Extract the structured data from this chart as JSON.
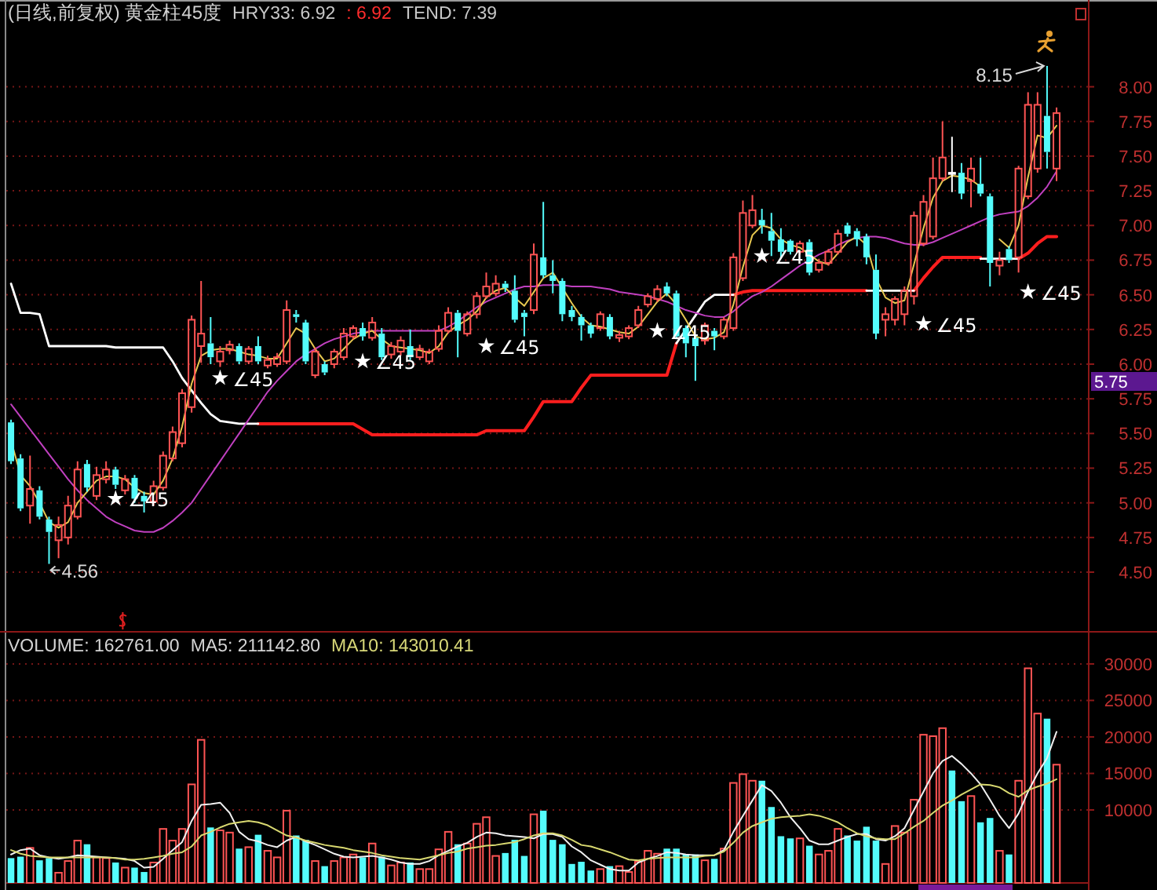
{
  "chart_data": [
    {
      "type": "candlestick",
      "title": "(日线,前复权) 黄金柱45度",
      "categories": [
        null,
        null,
        null,
        null,
        null,
        null,
        null,
        null,
        null,
        null,
        null,
        null,
        null,
        null,
        null,
        null,
        null,
        null,
        null,
        null,
        null,
        null,
        null,
        null,
        null,
        null,
        null,
        null,
        null,
        null,
        null,
        null,
        null,
        null,
        null,
        null,
        null,
        null,
        null,
        null,
        null,
        null,
        null,
        null,
        null,
        null,
        null,
        null,
        null,
        null,
        null,
        null,
        null,
        null,
        null,
        null,
        null,
        null,
        null,
        null,
        null,
        null,
        null,
        null,
        null,
        null,
        null,
        null,
        null,
        null,
        null,
        null,
        null,
        null,
        null,
        null,
        null,
        null,
        null,
        null,
        null,
        null,
        null,
        null,
        null,
        null,
        null,
        null,
        null,
        null,
        null,
        null,
        null,
        null,
        null,
        null,
        null,
        null,
        null,
        null,
        null,
        null,
        null,
        null,
        null,
        null,
        null,
        null,
        null,
        null,
        null
      ],
      "ohlc": [
        [
          5.58,
          5.6,
          5.28,
          5.3
        ],
        [
          5.32,
          5.35,
          4.94,
          4.96
        ],
        [
          4.98,
          5.34,
          4.85,
          5.1
        ],
        [
          5.09,
          5.12,
          4.88,
          4.9
        ],
        [
          4.88,
          4.9,
          4.56,
          4.79
        ],
        [
          4.73,
          4.9,
          4.6,
          4.84
        ],
        [
          4.75,
          5.05,
          4.7,
          4.98
        ],
        [
          4.9,
          5.3,
          4.88,
          5.24
        ],
        [
          5.28,
          5.31,
          5.08,
          5.11
        ],
        [
          5.05,
          5.26,
          5.02,
          5.2
        ],
        [
          5.17,
          5.3,
          5.14,
          5.24
        ],
        [
          5.24,
          5.26,
          5.1,
          5.13
        ],
        [
          5.09,
          5.2,
          5.06,
          5.17
        ],
        [
          5.18,
          5.2,
          5.0,
          5.03
        ],
        [
          5.05,
          5.08,
          4.93,
          5.01
        ],
        [
          5.01,
          5.16,
          4.98,
          5.12
        ],
        [
          5.11,
          5.37,
          5.09,
          5.34
        ],
        [
          5.32,
          5.55,
          5.3,
          5.51
        ],
        [
          5.43,
          5.82,
          5.4,
          5.79
        ],
        [
          5.69,
          6.35,
          5.65,
          6.32
        ],
        [
          6.13,
          6.6,
          6.01,
          6.22
        ],
        [
          6.15,
          6.34,
          6.0,
          6.05
        ],
        [
          6.02,
          6.13,
          5.98,
          6.09
        ],
        [
          6.1,
          6.17,
          6.07,
          6.14
        ],
        [
          6.13,
          6.15,
          6.0,
          6.02
        ],
        [
          6.02,
          6.13,
          6.0,
          6.11
        ],
        [
          6.13,
          6.2,
          6.0,
          6.02
        ],
        [
          5.99,
          6.06,
          5.97,
          6.03
        ],
        [
          6.0,
          6.08,
          5.98,
          6.05
        ],
        [
          6.02,
          6.46,
          6.0,
          6.39
        ],
        [
          6.36,
          6.39,
          6.3,
          6.34
        ],
        [
          6.3,
          6.32,
          6.0,
          6.02
        ],
        [
          5.92,
          6.12,
          5.9,
          6.09
        ],
        [
          6.0,
          6.02,
          5.92,
          5.94
        ],
        [
          6.0,
          6.11,
          5.97,
          6.09
        ],
        [
          6.05,
          6.26,
          6.03,
          6.22
        ],
        [
          6.2,
          6.28,
          6.18,
          6.26
        ],
        [
          6.26,
          6.3,
          6.17,
          6.2
        ],
        [
          6.19,
          6.34,
          6.17,
          6.3
        ],
        [
          6.22,
          6.26,
          6.03,
          6.05
        ],
        [
          6.07,
          6.16,
          6.04,
          6.13
        ],
        [
          6.09,
          6.2,
          6.06,
          6.17
        ],
        [
          6.13,
          6.25,
          6.03,
          6.05
        ],
        [
          6.05,
          6.14,
          6.03,
          6.11
        ],
        [
          6.02,
          6.11,
          6.0,
          6.09
        ],
        [
          6.11,
          6.28,
          6.09,
          6.24
        ],
        [
          6.24,
          6.41,
          6.22,
          6.37
        ],
        [
          6.37,
          6.39,
          6.05,
          6.24
        ],
        [
          6.22,
          6.38,
          6.2,
          6.36
        ],
        [
          6.36,
          6.52,
          6.33,
          6.49
        ],
        [
          6.49,
          6.66,
          6.47,
          6.56
        ],
        [
          6.51,
          6.64,
          6.49,
          6.58
        ],
        [
          6.58,
          6.6,
          6.52,
          6.55
        ],
        [
          6.53,
          6.64,
          6.3,
          6.32
        ],
        [
          6.37,
          6.39,
          6.2,
          6.34
        ],
        [
          6.39,
          6.87,
          6.36,
          6.79
        ],
        [
          6.77,
          7.17,
          6.62,
          6.64
        ],
        [
          6.64,
          6.75,
          6.51,
          6.6
        ],
        [
          6.6,
          6.62,
          6.31,
          6.36
        ],
        [
          6.39,
          6.42,
          6.31,
          6.34
        ],
        [
          6.34,
          6.36,
          6.17,
          6.28
        ],
        [
          6.28,
          6.3,
          6.19,
          6.22
        ],
        [
          6.26,
          6.38,
          6.24,
          6.36
        ],
        [
          6.34,
          6.36,
          6.18,
          6.2
        ],
        [
          6.19,
          6.24,
          6.16,
          6.21
        ],
        [
          6.2,
          6.28,
          6.18,
          6.26
        ],
        [
          6.28,
          6.42,
          6.26,
          6.39
        ],
        [
          6.43,
          6.51,
          6.41,
          6.49
        ],
        [
          6.47,
          6.57,
          6.45,
          6.54
        ],
        [
          6.56,
          6.59,
          6.49,
          6.51
        ],
        [
          6.51,
          6.53,
          6.18,
          6.2
        ],
        [
          6.26,
          6.28,
          6.05,
          6.15
        ],
        [
          6.19,
          6.21,
          5.88,
          6.13
        ],
        [
          6.17,
          6.3,
          6.14,
          6.28
        ],
        [
          6.24,
          6.26,
          6.1,
          6.2
        ],
        [
          6.2,
          6.34,
          6.18,
          6.32
        ],
        [
          6.26,
          6.8,
          6.24,
          6.77
        ],
        [
          6.62,
          7.18,
          6.6,
          7.09
        ],
        [
          7.0,
          7.22,
          6.98,
          7.11
        ],
        [
          7.04,
          7.12,
          6.94,
          7.0
        ],
        [
          6.96,
          7.09,
          6.78,
          6.89
        ],
        [
          6.9,
          6.98,
          6.76,
          6.81
        ],
        [
          6.89,
          6.9,
          6.79,
          6.81
        ],
        [
          6.81,
          6.89,
          6.79,
          6.87
        ],
        [
          6.88,
          6.9,
          6.64,
          6.66
        ],
        [
          6.68,
          6.76,
          6.66,
          6.73
        ],
        [
          6.73,
          6.83,
          6.71,
          6.81
        ],
        [
          6.81,
          6.97,
          6.79,
          6.94
        ],
        [
          7.0,
          7.02,
          6.92,
          6.94
        ],
        [
          6.96,
          6.98,
          6.85,
          6.9
        ],
        [
          6.92,
          6.94,
          6.72,
          6.77
        ],
        [
          6.68,
          6.79,
          6.18,
          6.22
        ],
        [
          6.32,
          6.41,
          6.2,
          6.36
        ],
        [
          6.32,
          6.49,
          6.28,
          6.47
        ],
        [
          6.36,
          6.56,
          6.28,
          6.53
        ],
        [
          6.49,
          7.1,
          6.43,
          7.07
        ],
        [
          6.87,
          7.22,
          6.85,
          7.17
        ],
        [
          6.92,
          7.49,
          6.9,
          7.34
        ],
        [
          7.34,
          7.75,
          7.32,
          7.49
        ],
        [
          7.38,
          7.64,
          7.24,
          7.38
        ],
        [
          7.38,
          7.45,
          7.19,
          7.23
        ],
        [
          7.32,
          7.49,
          7.13,
          7.41
        ],
        [
          7.3,
          7.49,
          7.21,
          7.23
        ],
        [
          7.21,
          7.23,
          6.56,
          6.73
        ],
        [
          6.71,
          6.81,
          6.64,
          6.75
        ],
        [
          6.83,
          6.85,
          6.73,
          6.75
        ],
        [
          6.77,
          7.43,
          6.66,
          7.41
        ],
        [
          7.21,
          7.96,
          7.19,
          7.87
        ],
        [
          7.41,
          7.96,
          7.38,
          7.87
        ],
        [
          7.79,
          8.15,
          7.41,
          7.53
        ],
        [
          7.41,
          7.85,
          7.32,
          7.81
        ]
      ],
      "colors": [
        "#54fcfc",
        "#54fcfc",
        "#ff5454",
        "#54fcfc",
        "#54fcfc",
        "#ff5454",
        "#ff5454",
        "#ff5454",
        "#54fcfc",
        "#ff5454",
        "#ff5454",
        "#54fcfc",
        "#ff5454",
        "#54fcfc",
        "#54fcfc",
        "#ff5454",
        "#ff5454",
        "#ff5454",
        "#ff5454",
        "#ff5454",
        "#ff5454",
        "#54fcfc",
        "#ff5454",
        "#ff5454",
        "#54fcfc",
        "#ff5454",
        "#54fcfc",
        "#ff5454",
        "#ff5454",
        "#ff5454",
        "#54fcfc",
        "#54fcfc",
        "#ff5454",
        "#54fcfc",
        "#ff5454",
        "#ff5454",
        "#ff5454",
        "#54fcfc",
        "#ff5454",
        "#54fcfc",
        "#ff5454",
        "#ff5454",
        "#54fcfc",
        "#ff5454",
        "#ff5454",
        "#ff5454",
        "#ff5454",
        "#54fcfc",
        "#ff5454",
        "#ff5454",
        "#ff5454",
        "#ff5454",
        "#54fcfc",
        "#54fcfc",
        "#54fcfc",
        "#ff5454",
        "#54fcfc",
        "#54fcfc",
        "#54fcfc",
        "#54fcfc",
        "#54fcfc",
        "#54fcfc",
        "#ff5454",
        "#54fcfc",
        "#ff5454",
        "#ff5454",
        "#ff5454",
        "#ff5454",
        "#ff5454",
        "#54fcfc",
        "#54fcfc",
        "#54fcfc",
        "#54fcfc",
        "#ff5454",
        "#54fcfc",
        "#ff5454",
        "#ff5454",
        "#ff5454",
        "#ff5454",
        "#54fcfc",
        "#54fcfc",
        "#54fcfc",
        "#54fcfc",
        "#ff5454",
        "#54fcfc",
        "#ff5454",
        "#ff5454",
        "#ff5454",
        "#54fcfc",
        "#54fcfc",
        "#54fcfc",
        "#54fcfc",
        "#ff5454",
        "#ff5454",
        "#ff5454",
        "#ff5454",
        "#ff5454",
        "#ff5454",
        "#ff5454",
        "#ffffff",
        "#54fcfc",
        "#ff5454",
        "#54fcfc",
        "#54fcfc",
        "#ff5454",
        "#54fcfc",
        "#ff5454",
        "#ff5454",
        "#ff5454",
        "#54fcfc",
        "#ff5454"
      ],
      "series": [
        {
          "type": "line",
          "color": "#ff1e1e",
          "values": [
            null,
            null,
            null,
            null,
            null,
            null,
            null,
            null,
            null,
            null,
            null,
            null,
            null,
            null,
            null,
            null,
            null,
            null,
            null,
            null,
            null,
            null,
            null,
            null,
            null,
            null,
            5.57,
            5.57,
            5.57,
            5.57,
            5.57,
            5.57,
            5.57,
            5.57,
            5.57,
            5.57,
            5.57,
            5.53,
            5.49,
            5.49,
            5.49,
            5.49,
            5.49,
            5.49,
            5.49,
            5.49,
            5.49,
            5.49,
            5.49,
            5.49,
            5.52,
            5.52,
            5.52,
            5.52,
            5.52,
            5.62,
            5.73,
            5.73,
            5.73,
            5.73,
            5.83,
            5.92,
            5.92,
            5.92,
            5.92,
            5.92,
            5.92,
            5.92,
            5.92,
            5.92,
            6.15,
            null,
            null,
            null,
            null,
            null,
            6.5,
            6.52,
            6.53,
            6.53,
            6.53,
            6.53,
            6.53,
            6.53,
            6.53,
            6.53,
            6.53,
            6.53,
            6.53,
            6.53,
            6.53,
            null,
            null,
            null,
            null,
            6.53,
            6.62,
            6.7,
            6.77,
            6.77,
            6.77,
            6.77,
            6.77,
            null,
            null,
            null,
            6.76,
            6.8,
            6.87,
            6.92,
            6.92
          ]
        },
        {
          "type": "line",
          "color": "#ffffff",
          "values": [
            6.58,
            6.37,
            6.37,
            6.36,
            6.13,
            6.13,
            6.13,
            6.13,
            6.13,
            6.13,
            6.13,
            6.12,
            6.12,
            6.12,
            6.12,
            6.12,
            6.12,
            6.02,
            5.9,
            5.81,
            5.72,
            5.64,
            5.59,
            5.58,
            5.57,
            5.57,
            5.57,
            null,
            null,
            null,
            null,
            null,
            null,
            null,
            null,
            null,
            null,
            null,
            null,
            null,
            null,
            null,
            null,
            null,
            null,
            null,
            null,
            null,
            null,
            null,
            null,
            null,
            null,
            null,
            null,
            null,
            null,
            null,
            null,
            null,
            null,
            null,
            null,
            null,
            null,
            null,
            null,
            null,
            null,
            null,
            6.15,
            6.25,
            6.35,
            6.45,
            6.5,
            6.5,
            6.5,
            null,
            null,
            null,
            null,
            null,
            null,
            null,
            null,
            null,
            null,
            null,
            null,
            null,
            6.53,
            6.53,
            6.53,
            6.53,
            6.53,
            6.53,
            null,
            null,
            null,
            null,
            null,
            null,
            6.76,
            6.76,
            6.76,
            6.76,
            6.76,
            null,
            null,
            null,
            null
          ]
        },
        {
          "type": "line",
          "color": "#c040c0",
          "values": [
            5.71,
            5.62,
            5.53,
            5.44,
            5.35,
            5.26,
            5.17,
            5.09,
            5.02,
            4.96,
            4.9,
            4.86,
            4.83,
            4.8,
            4.79,
            4.79,
            4.82,
            4.87,
            4.93,
            5.0,
            5.1,
            5.2,
            5.3,
            5.4,
            5.5,
            5.6,
            5.7,
            5.8,
            5.88,
            5.95,
            6.02,
            6.07,
            6.11,
            6.15,
            6.18,
            6.2,
            6.22,
            6.23,
            6.24,
            6.24,
            6.24,
            6.24,
            6.24,
            6.24,
            6.24,
            6.24,
            6.27,
            6.31,
            6.36,
            6.41,
            6.45,
            6.48,
            6.51,
            6.54,
            6.56,
            6.56,
            6.57,
            6.57,
            6.57,
            6.56,
            6.56,
            6.56,
            6.55,
            6.54,
            6.52,
            6.51,
            6.5,
            6.49,
            6.47,
            6.45,
            6.42,
            6.39,
            6.37,
            6.35,
            6.34,
            6.34,
            6.38,
            6.44,
            6.49,
            6.52,
            6.56,
            6.61,
            6.66,
            6.71,
            6.75,
            6.79,
            6.82,
            6.86,
            6.89,
            6.91,
            6.92,
            6.92,
            6.91,
            6.89,
            6.87,
            6.86,
            6.86,
            6.88,
            6.91,
            6.94,
            6.97,
            7.0,
            7.03,
            7.06,
            7.08,
            7.09,
            7.1,
            7.14,
            7.2,
            7.28,
            7.39
          ]
        },
        {
          "type": "line",
          "color": "#e8c850",
          "values": [
            5.45,
            5.2,
            5.12,
            5.0,
            4.86,
            4.82,
            4.86,
            5.0,
            5.08,
            5.16,
            5.19,
            5.19,
            5.17,
            5.11,
            5.07,
            5.06,
            5.16,
            5.32,
            5.55,
            5.86,
            6.06,
            6.1,
            6.11,
            6.11,
            6.09,
            6.07,
            6.06,
            6.04,
            6.04,
            6.15,
            6.26,
            6.22,
            6.11,
            6.02,
            6.04,
            6.11,
            6.18,
            6.22,
            6.24,
            6.18,
            6.13,
            6.12,
            6.11,
            6.1,
            6.08,
            6.13,
            6.23,
            6.28,
            6.32,
            6.38,
            6.48,
            6.53,
            6.55,
            6.48,
            6.42,
            6.52,
            6.62,
            6.66,
            6.55,
            6.44,
            6.34,
            6.28,
            6.27,
            6.25,
            6.23,
            6.22,
            6.27,
            6.36,
            6.45,
            6.51,
            6.43,
            6.32,
            6.2,
            6.18,
            6.19,
            6.23,
            6.43,
            6.7,
            6.93,
            7.0,
            6.98,
            6.9,
            6.86,
            6.84,
            6.79,
            6.74,
            6.72,
            6.8,
            6.88,
            6.92,
            6.86,
            6.62,
            6.48,
            6.44,
            6.46,
            6.72,
            6.98,
            7.2,
            7.32,
            7.36,
            7.35,
            7.33,
            7.28,
            null,
            6.9,
            6.84,
            7.0,
            7.35,
            7.65,
            7.63,
            7.72
          ]
        },
        {
          "type": "scatter",
          "name": "∠45",
          "color": "#ffffff",
          "marker": "star",
          "values": [
            null,
            null,
            null,
            null,
            null,
            null,
            null,
            null,
            null,
            null,
            null,
            5.03,
            null,
            null,
            null,
            null,
            null,
            null,
            null,
            null,
            null,
            null,
            5.9,
            null,
            null,
            null,
            null,
            null,
            null,
            null,
            null,
            null,
            null,
            null,
            null,
            null,
            null,
            6.02,
            null,
            null,
            null,
            null,
            null,
            null,
            null,
            null,
            null,
            null,
            null,
            null,
            6.13,
            null,
            null,
            null,
            null,
            null,
            null,
            null,
            null,
            null,
            null,
            null,
            null,
            null,
            null,
            null,
            null,
            null,
            6.24,
            null,
            null,
            null,
            null,
            null,
            null,
            null,
            null,
            null,
            null,
            6.78,
            null,
            null,
            null,
            null,
            null,
            null,
            null,
            null,
            null,
            null,
            null,
            null,
            null,
            null,
            null,
            null,
            6.29,
            null,
            null,
            null,
            null,
            null,
            null,
            null,
            null,
            null,
            null,
            6.52,
            null,
            null,
            null
          ]
        }
      ],
      "ylim": [
        4.07,
        8.62
      ],
      "yticks": [
        {
          "value": 4.5,
          "label": "4.50"
        },
        {
          "value": 4.75,
          "label": "4.75"
        },
        {
          "value": 5,
          "label": "5.00"
        },
        {
          "value": 5.25,
          "label": "5.25"
        },
        {
          "value": 5.5,
          "label": "5.50"
        },
        {
          "value": 5.75,
          "label": "5.75"
        },
        {
          "value": 6,
          "label": "6.00"
        },
        {
          "value": 6.25,
          "label": "6.25"
        },
        {
          "value": 6.5,
          "label": "6.50"
        },
        {
          "value": 6.75,
          "label": "6.75"
        },
        {
          "value": 7,
          "label": "7.00"
        },
        {
          "value": 7.25,
          "label": "7.25"
        },
        {
          "value": 7.5,
          "label": "7.50"
        },
        {
          "value": 7.75,
          "label": "7.75"
        },
        {
          "value": 8,
          "label": "8.00"
        }
      ],
      "grid": "y",
      "tick_labels": "y",
      "annotations": [
        "HRY33: 6.92",
        ": 6.92",
        "TEND: 7.39",
        "8.15",
        "4.56",
        "5.75"
      ]
    },
    {
      "type": "bar",
      "categories": [
        null,
        null,
        null,
        null,
        null,
        null,
        null,
        null,
        null,
        null,
        null,
        null,
        null,
        null,
        null,
        null,
        null,
        null,
        null,
        null,
        null,
        null,
        null,
        null,
        null,
        null,
        null,
        null,
        null,
        null,
        null,
        null,
        null,
        null,
        null,
        null,
        null,
        null,
        null,
        null,
        null,
        null,
        null,
        null,
        null,
        null,
        null,
        null,
        null,
        null,
        null,
        null,
        null,
        null,
        null,
        null,
        null,
        null,
        null,
        null,
        null,
        null,
        null,
        null,
        null,
        null,
        null,
        null,
        null,
        null,
        null,
        null,
        null,
        null,
        null,
        null,
        null,
        null,
        null,
        null,
        null,
        null,
        null,
        null,
        null,
        null,
        null,
        null,
        null,
        null,
        null,
        null,
        null,
        null,
        null,
        null,
        null,
        null,
        null,
        null,
        null,
        null,
        null,
        null,
        null,
        null,
        null,
        null,
        null,
        null,
        null
      ],
      "series": [
        {
          "type": "bar",
          "colors": [
            "#54fcfc",
            "#54fcfc",
            "#ff5454",
            "#54fcfc",
            "#54fcfc",
            "#ff5454",
            "#ff5454",
            "#ff5454",
            "#54fcfc",
            "#ff5454",
            "#ff5454",
            "#54fcfc",
            "#ff5454",
            "#54fcfc",
            "#54fcfc",
            "#ff5454",
            "#ff5454",
            "#ff5454",
            "#ff5454",
            "#ff5454",
            "#ff5454",
            "#54fcfc",
            "#ff5454",
            "#ff5454",
            "#54fcfc",
            "#ff5454",
            "#54fcfc",
            "#ff5454",
            "#ff5454",
            "#ff5454",
            "#54fcfc",
            "#54fcfc",
            "#ff5454",
            "#54fcfc",
            "#ff5454",
            "#ff5454",
            "#ff5454",
            "#54fcfc",
            "#ff5454",
            "#54fcfc",
            "#ff5454",
            "#ff5454",
            "#54fcfc",
            "#ff5454",
            "#ff5454",
            "#ff5454",
            "#ff5454",
            "#54fcfc",
            "#ff5454",
            "#ff5454",
            "#ff5454",
            "#ff5454",
            "#54fcfc",
            "#54fcfc",
            "#54fcfc",
            "#ff5454",
            "#54fcfc",
            "#54fcfc",
            "#54fcfc",
            "#54fcfc",
            "#54fcfc",
            "#54fcfc",
            "#ff5454",
            "#54fcfc",
            "#ff5454",
            "#ff5454",
            "#ff5454",
            "#ff5454",
            "#ff5454",
            "#54fcfc",
            "#54fcfc",
            "#54fcfc",
            "#54fcfc",
            "#ff5454",
            "#54fcfc",
            "#ff5454",
            "#ff5454",
            "#ff5454",
            "#ff5454",
            "#54fcfc",
            "#54fcfc",
            "#54fcfc",
            "#54fcfc",
            "#ff5454",
            "#54fcfc",
            "#ff5454",
            "#ff5454",
            "#ff5454",
            "#54fcfc",
            "#54fcfc",
            "#54fcfc",
            "#54fcfc",
            "#ff5454",
            "#ff5454",
            "#ff5454",
            "#ff5454",
            "#ff5454",
            "#ff5454",
            "#ff5454",
            "#54fcfc",
            "#54fcfc",
            "#ff5454",
            "#54fcfc",
            "#54fcfc",
            "#ff5454",
            "#54fcfc",
            "#ff5454",
            "#ff5454",
            "#ff5454",
            "#54fcfc",
            "#ff5454"
          ],
          "values": [
            3400,
            3600,
            4800,
            3100,
            3400,
            1400,
            3000,
            5800,
            5300,
            3500,
            3400,
            2800,
            2100,
            2100,
            1500,
            2800,
            7400,
            5800,
            7400,
            13500,
            19600,
            7600,
            7200,
            6900,
            4700,
            4900,
            6600,
            4400,
            3500,
            9900,
            6500,
            5900,
            3000,
            2300,
            3000,
            3500,
            3900,
            3500,
            5400,
            3600,
            2400,
            2800,
            2800,
            1900,
            1900,
            4600,
            7000,
            5300,
            5400,
            8100,
            9000,
            3700,
            4100,
            5900,
            3700,
            9400,
            9900,
            5900,
            5300,
            2600,
            2900,
            1700,
            1900,
            2300,
            2300,
            1500,
            2900,
            4400,
            4000,
            4700,
            4700,
            3900,
            3900,
            3100,
            3300,
            4700,
            13700,
            14900,
            14000,
            14000,
            10400,
            6400,
            6100,
            6100,
            5100,
            3900,
            4400,
            7400,
            6500,
            5800,
            7700,
            5800,
            2600,
            7800,
            6900,
            11400,
            20300,
            20100,
            21200,
            15400,
            11200,
            11900,
            8300,
            8900,
            4400,
            3900,
            14000,
            29400,
            23200,
            22500,
            16200
          ]
        },
        {
          "type": "line",
          "color": "#f0f0f0",
          "values": [
            3900,
            4500,
            4700,
            3800,
            3500,
            3300,
            3500,
            3800,
            3700,
            3600,
            3500,
            3400,
            3300,
            3000,
            2100,
            2200,
            3300,
            4500,
            5600,
            8500,
            10700,
            10800,
            11000,
            9600,
            7000,
            6000,
            5700,
            5200,
            4900,
            5800,
            6300,
            5700,
            5200,
            4600,
            4000,
            3600,
            3500,
            3600,
            3700,
            3500,
            3200,
            2800,
            2600,
            2600,
            3000,
            3800,
            4400,
            5000,
            5500,
            6300,
            6900,
            6800,
            6500,
            6400,
            6300,
            6100,
            6700,
            6700,
            6300,
            5000,
            4200,
            3100,
            2500,
            1900,
            1700,
            1700,
            2800,
            3300,
            3700,
            4200,
            4100,
            3900,
            3800,
            3800,
            3800,
            4500,
            7000,
            9200,
            11300,
            13400,
            12600,
            11000,
            9000,
            7500,
            5800,
            5300,
            5300,
            5800,
            6300,
            6700,
            6700,
            6000,
            5800,
            6400,
            7500,
            10000,
            12500,
            15000,
            16700,
            17400,
            16300,
            15000,
            13500,
            11400,
            9200,
            7500,
            9500,
            12500,
            15000,
            17100,
            20700
          ]
        },
        {
          "type": "line",
          "color": "#d8d870",
          "values": [
            4500,
            4000,
            3700,
            3600,
            3500,
            3500,
            3500,
            3500,
            3500,
            3500,
            3500,
            3400,
            3200,
            3200,
            3300,
            3500,
            3700,
            4000,
            4200,
            5000,
            6500,
            7000,
            7600,
            8100,
            8300,
            8500,
            8300,
            7900,
            7200,
            6500,
            6200,
            5800,
            5500,
            5200,
            5000,
            4800,
            4500,
            4300,
            4100,
            3800,
            3600,
            3400,
            3300,
            3200,
            3500,
            3800,
            4100,
            4300,
            4700,
            4900,
            5100,
            5200,
            5400,
            5600,
            6000,
            6500,
            6800,
            6800,
            6500,
            5900,
            5200,
            5000,
            4600,
            4200,
            3700,
            3200,
            3100,
            3300,
            3400,
            3500,
            3500,
            3500,
            3500,
            3700,
            3800,
            4300,
            5500,
            6900,
            7800,
            8300,
            8800,
            9000,
            9100,
            9200,
            9400,
            9200,
            8800,
            8300,
            7500,
            6800,
            6400,
            6100,
            6000,
            6000,
            6800,
            7700,
            8500,
            9600,
            10600,
            11300,
            12100,
            12800,
            13500,
            13400,
            13100,
            12300,
            11800,
            12700,
            13200,
            13600,
            14200
          ]
        }
      ],
      "ylim": [
        0,
        34400
      ],
      "yticks": [
        10000,
        15000,
        20000,
        25000,
        30000
      ],
      "grid": "y",
      "tick_labels": "y",
      "annotations": [
        "VOLUME: 162761.00",
        "MA5: 211142.80",
        "MA10: 143010.41"
      ]
    }
  ]
}
